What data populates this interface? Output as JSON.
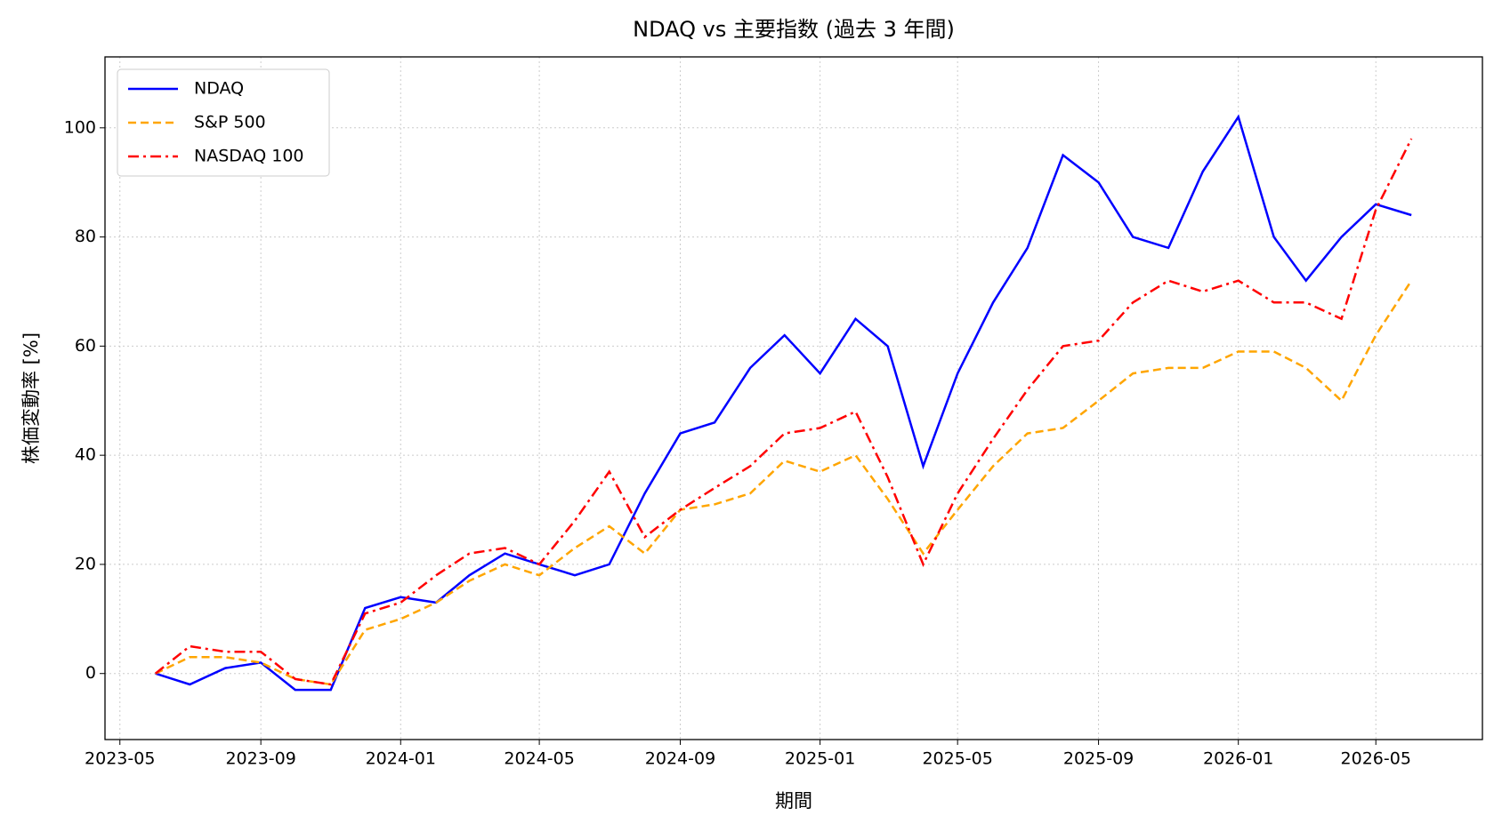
{
  "chart_data": {
    "type": "line",
    "title": "NDAQ vs 主要指数 (過去 3 年間)",
    "xlabel": "期間",
    "ylabel": "株価変動率 [%]",
    "x": [
      "2023-06",
      "2023-07",
      "2023-08",
      "2023-09",
      "2023-10",
      "2023-11",
      "2023-12",
      "2024-01",
      "2024-02",
      "2024-03",
      "2024-04",
      "2024-05",
      "2024-06",
      "2024-07",
      "2024-08",
      "2024-09",
      "2024-10",
      "2024-11",
      "2024-12",
      "2025-01",
      "2025-02",
      "2025-03",
      "2025-04",
      "2025-05",
      "2025-06",
      "2025-07",
      "2025-08",
      "2025-09",
      "2025-10",
      "2025-11",
      "2025-12",
      "2026-01",
      "2026-02",
      "2026-03",
      "2026-04",
      "2026-05",
      "2026-06"
    ],
    "series": [
      {
        "name": "NDAQ",
        "color": "#0000ff",
        "linestyle": "solid",
        "values": [
          0,
          -2,
          1,
          2,
          -3,
          -3,
          12,
          14,
          13,
          18,
          22,
          20,
          18,
          20,
          33,
          44,
          46,
          56,
          62,
          55,
          65,
          60,
          38,
          55,
          68,
          78,
          95,
          90,
          80,
          78,
          92,
          102,
          80,
          72,
          80,
          86,
          84
        ]
      },
      {
        "name": "S&P 500",
        "color": "#ffa500",
        "linestyle": "dashed",
        "values": [
          0,
          3,
          3,
          2,
          -1,
          -2,
          8,
          10,
          13,
          17,
          20,
          18,
          23,
          27,
          22,
          30,
          31,
          33,
          39,
          37,
          40,
          32,
          22,
          30,
          38,
          44,
          45,
          50,
          55,
          56,
          56,
          59,
          59,
          56,
          50,
          62,
          72
        ]
      },
      {
        "name": "NASDAQ 100",
        "color": "#ff0000",
        "linestyle": "dashdot",
        "values": [
          0,
          5,
          4,
          4,
          -1,
          -2,
          11,
          13,
          18,
          22,
          23,
          20,
          28,
          37,
          25,
          30,
          34,
          38,
          44,
          45,
          48,
          36,
          20,
          33,
          43,
          52,
          60,
          61,
          68,
          72,
          70,
          72,
          68,
          68,
          65,
          85,
          98
        ]
      }
    ],
    "xlim": [
      "2023-04-18",
      "2026-08-02"
    ],
    "xticks": [
      "2023-05",
      "2023-09",
      "2024-01",
      "2024-05",
      "2024-09",
      "2025-01",
      "2025-05",
      "2025-09",
      "2026-01",
      "2026-05"
    ],
    "ylim": [
      -12.1,
      113
    ],
    "yticks": [
      0,
      20,
      40,
      60,
      80,
      100
    ],
    "grid": true,
    "legend": "upper left"
  }
}
